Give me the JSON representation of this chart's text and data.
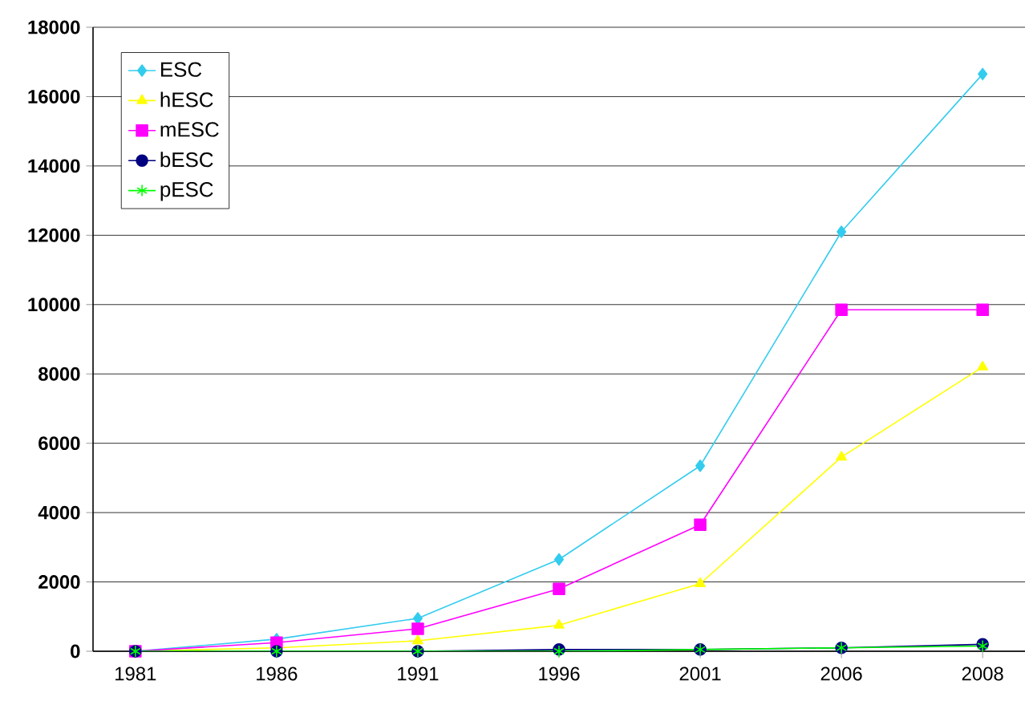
{
  "chart_data": {
    "type": "line",
    "categories": [
      "1981",
      "1986",
      "1991",
      "1996",
      "2001",
      "2006",
      "2008"
    ],
    "ylim": [
      0,
      18000
    ],
    "yticks": [
      0,
      2000,
      4000,
      6000,
      8000,
      10000,
      12000,
      14000,
      16000,
      18000
    ],
    "grid": "y",
    "legend": "top left",
    "series": [
      {
        "name": "ESC",
        "color": "#33ccee",
        "marker": "diamond",
        "values": [
          0,
          350,
          950,
          2650,
          5350,
          12100,
          16650
        ]
      },
      {
        "name": "hESC",
        "color": "#ffff00",
        "marker": "triangle",
        "values": [
          0,
          100,
          300,
          750,
          1950,
          5600,
          8200
        ]
      },
      {
        "name": "mESC",
        "color": "#ff00ff",
        "marker": "square",
        "values": [
          0,
          250,
          650,
          1800,
          3650,
          9850,
          9850
        ]
      },
      {
        "name": "bESC",
        "color": "#000080",
        "marker": "circle",
        "values": [
          0,
          0,
          0,
          50,
          50,
          100,
          200
        ]
      },
      {
        "name": "pESC",
        "color": "#00ff00",
        "marker": "cross",
        "values": [
          0,
          0,
          0,
          0,
          50,
          100,
          150
        ]
      }
    ]
  }
}
